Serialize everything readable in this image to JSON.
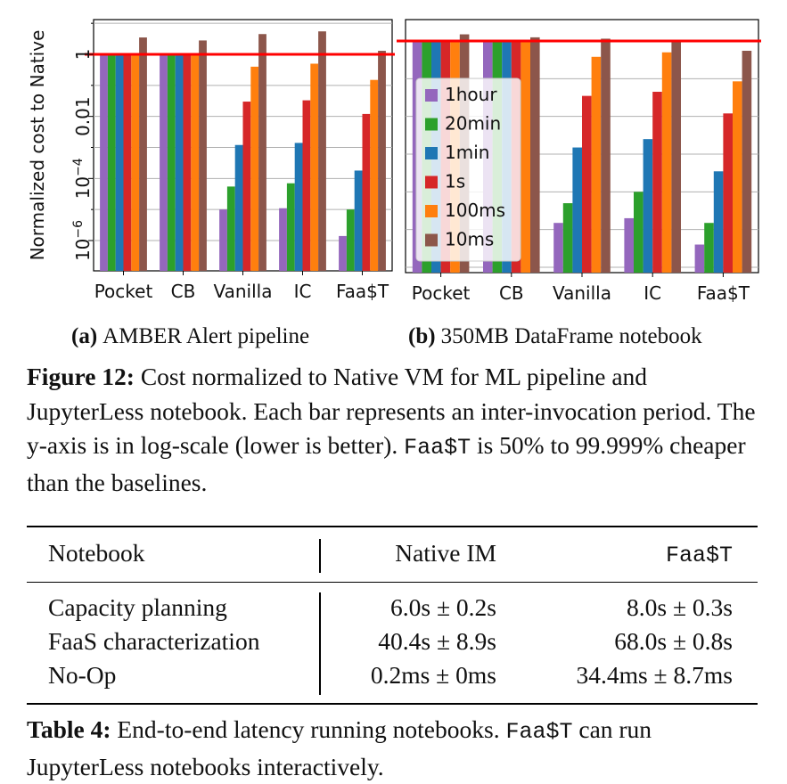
{
  "figure": {
    "subcaption_a_label": "(a)",
    "subcaption_a_text": "AMBER Alert pipeline",
    "subcaption_b_label": "(b)",
    "subcaption_b_text": "350MB DataFrame notebook",
    "caption_label": "Figure 12:",
    "caption_text_1": " Cost normalized to Native VM for ML pipeline and JupyterLess notebook. Each bar represents an inter-invocation period. The y-axis is in log-scale (lower is better). ",
    "caption_mono": "Faa$T",
    "caption_text_2": " is 50% to 99.999% cheaper than the baselines."
  },
  "colors": {
    "1hour": "#9467bd",
    "20min": "#2ca02c",
    "1min": "#1f77b4",
    "1s": "#d62728",
    "100ms": "#ff7f0e",
    "10ms": "#8c564b",
    "reference_line": "#ff0000"
  },
  "chart_data": [
    {
      "type": "bar",
      "title": "",
      "ylabel": "Normalized cost to Native",
      "xlabel": "",
      "yscale": "log",
      "ylim": [
        1e-07,
        30
      ],
      "yticks": [
        "1",
        "0.01",
        "10^-4",
        "10^-6"
      ],
      "grid": true,
      "reference_line": 1,
      "categories": [
        "Pocket",
        "CB",
        "Vanilla",
        "IC",
        "Faa$T"
      ],
      "series": [
        {
          "name": "1hour",
          "values": [
            1,
            1,
            1e-05,
            1.1e-05,
            1.4e-06
          ]
        },
        {
          "name": "20min",
          "values": [
            1,
            1,
            5.5e-05,
            7e-05,
            1e-05
          ]
        },
        {
          "name": "1min",
          "values": [
            1,
            1,
            0.0012,
            0.0014,
            0.00018
          ]
        },
        {
          "name": "1s",
          "values": [
            1,
            1,
            0.03,
            0.033,
            0.012
          ]
        },
        {
          "name": "100ms",
          "values": [
            1.1,
            1.1,
            0.4,
            0.5,
            0.15
          ]
        },
        {
          "name": "10ms",
          "values": [
            3.5,
            2.8,
            4.5,
            5.5,
            1.3
          ]
        }
      ]
    },
    {
      "type": "bar",
      "title": "",
      "ylabel": "",
      "xlabel": "",
      "yscale": "log",
      "grid": true,
      "reference_line": 1,
      "legend_position": "upper-left",
      "categories": [
        "Pocket",
        "CB",
        "Vanilla",
        "IC",
        "Faa$T"
      ],
      "series": [
        {
          "name": "1hour",
          "values": [
            1,
            1,
            1.5e-05,
            2e-05,
            4e-06
          ]
        },
        {
          "name": "20min",
          "values": [
            1,
            1,
            5e-05,
            0.0001,
            1.5e-05
          ]
        },
        {
          "name": "1min",
          "values": [
            1,
            1,
            0.0015,
            0.0025,
            0.00035
          ]
        },
        {
          "name": "1s",
          "values": [
            1,
            1,
            0.035,
            0.045,
            0.012
          ]
        },
        {
          "name": "100ms",
          "values": [
            1,
            1,
            0.38,
            0.5,
            0.085
          ]
        },
        {
          "name": "10ms",
          "values": [
            1.5,
            1.25,
            1.15,
            1,
            0.55
          ]
        }
      ]
    }
  ],
  "table": {
    "headers": [
      "Notebook",
      "Native IM",
      "Faa$T"
    ],
    "rows": [
      [
        "Capacity planning",
        "6.0s ± 0.2s",
        "8.0s ± 0.3s"
      ],
      [
        "FaaS characterization",
        "40.4s ± 8.9s",
        "68.0s ± 0.8s"
      ],
      [
        "No-Op",
        "0.2ms ± 0ms",
        "34.4ms ± 8.7ms"
      ]
    ],
    "caption_label": "Table 4:",
    "caption_text_1": " End-to-end latency running notebooks. ",
    "caption_mono": "Faa$T",
    "caption_text_2": " can run JupyterLess notebooks interactively."
  }
}
